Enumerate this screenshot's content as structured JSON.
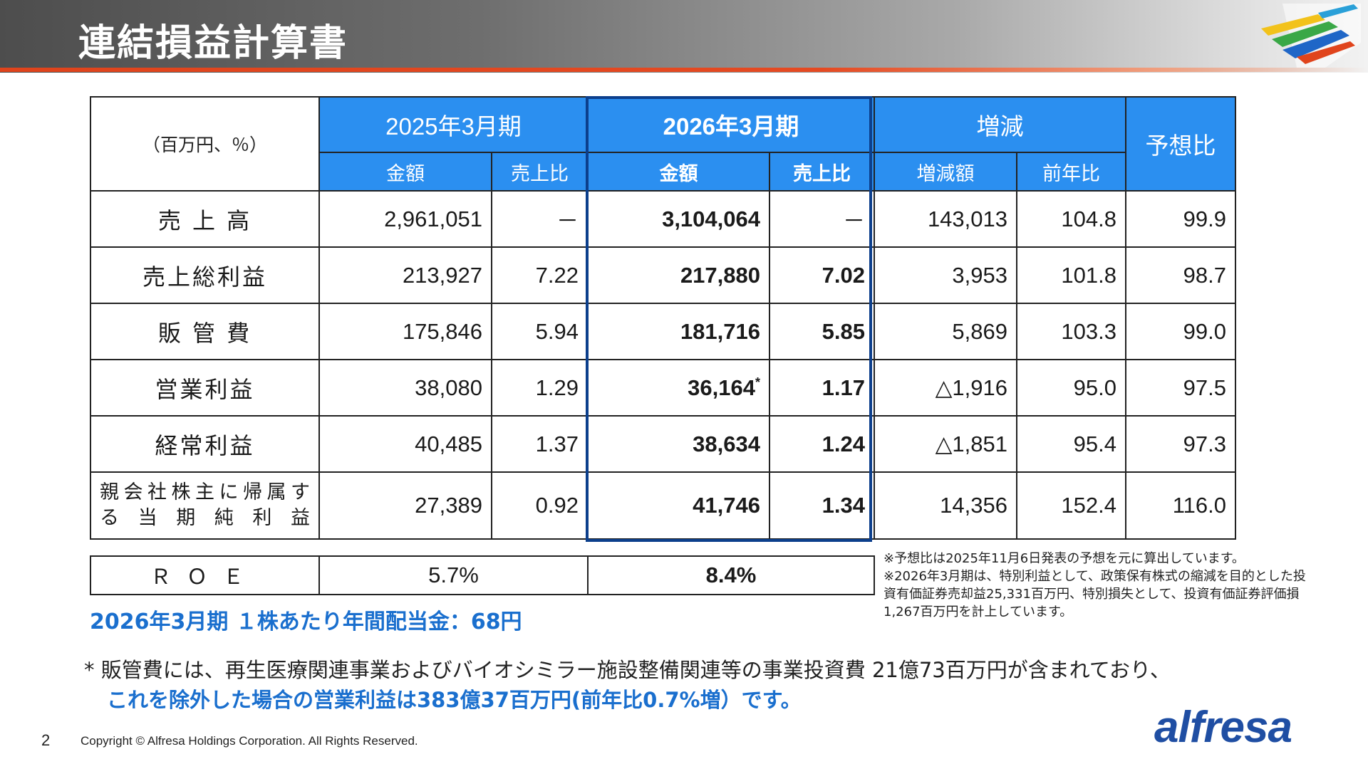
{
  "header": {
    "title": "連結損益計算書"
  },
  "table": {
    "unit_label": "（百万円、％）",
    "groups": {
      "prev": "2025年3月期",
      "curr": "2026年3月期",
      "change": "増減",
      "forecast": "予想比"
    },
    "subheaders": {
      "prev_amount": "金額",
      "prev_ratio": "売上比",
      "curr_amount": "金額",
      "curr_ratio": "売上比",
      "change_amount": "増減額",
      "change_yoy": "前年比"
    },
    "rows": [
      {
        "label": "売 上 高",
        "prev_amount": "2,961,051",
        "prev_ratio": "－",
        "curr_amount": "3,104,064",
        "curr_ratio": "－",
        "change_amount": "143,013",
        "yoy": "104.8",
        "forecast": "99.9"
      },
      {
        "label": "売上総利益",
        "prev_amount": "213,927",
        "prev_ratio": "7.22",
        "curr_amount": "217,880",
        "curr_ratio": "7.02",
        "change_amount": "3,953",
        "yoy": "101.8",
        "forecast": "98.7"
      },
      {
        "label": "販 管 費",
        "prev_amount": "175,846",
        "prev_ratio": "5.94",
        "curr_amount": "181,716",
        "curr_ratio": "5.85",
        "change_amount": "5,869",
        "yoy": "103.3",
        "forecast": "99.0"
      },
      {
        "label": "営業利益",
        "prev_amount": "38,080",
        "prev_ratio": "1.29",
        "curr_amount": "36,164",
        "curr_amount_mark": "*",
        "curr_ratio": "1.17",
        "change_amount": "△1,916",
        "yoy": "95.0",
        "forecast": "97.5"
      },
      {
        "label": "経常利益",
        "prev_amount": "40,485",
        "prev_ratio": "1.37",
        "curr_amount": "38,634",
        "curr_ratio": "1.24",
        "change_amount": "△1,851",
        "yoy": "95.4",
        "forecast": "97.3"
      },
      {
        "label_line1": "親会社株主に帰属す",
        "label_line2": "る当期純利益",
        "prev_amount": "27,389",
        "prev_ratio": "0.92",
        "curr_amount": "41,746",
        "curr_ratio": "1.34",
        "change_amount": "14,356",
        "yoy": "152.4",
        "forecast": "116.0"
      }
    ]
  },
  "roe": {
    "label": "ＲＯＥ",
    "prev": "5.7%",
    "curr": "8.4%"
  },
  "dividend": "2026年3月期 １株あたり年間配当金：68円",
  "side_notes": [
    "※予想比は2025年11月6日発表の予想を元に算出しています。",
    "※2026年3月期は、特別利益として、政策保有株式の縮減を目的とした投資有価証券売却益25,331百万円、特別損失として、投資有価証券評価損1,267百万円を計上しています。"
  ],
  "footnote": {
    "line1": "* 販管費には、再生医療関連事業およびバイオシミラー施設整備関連等の事業投資費 21億73百万円が含まれており、",
    "line2": "これを除外した場合の営業利益は383億37百万円(前年比0.7%増）です。"
  },
  "footer": {
    "page_number": "2",
    "copyright": "Copyright © Alfresa Holdings Corporation. All Rights Reserved.",
    "logo_text": "alfresa"
  },
  "colors": {
    "header_blue": "#2b8ff0",
    "highlight_border": "#0c3f8c",
    "accent_text": "#1a6fce",
    "rule_orange": "#e0441c",
    "logo_navy": "#1f4ea3"
  },
  "icons": {
    "header_decoration": "colorful-stripes-graphic"
  }
}
